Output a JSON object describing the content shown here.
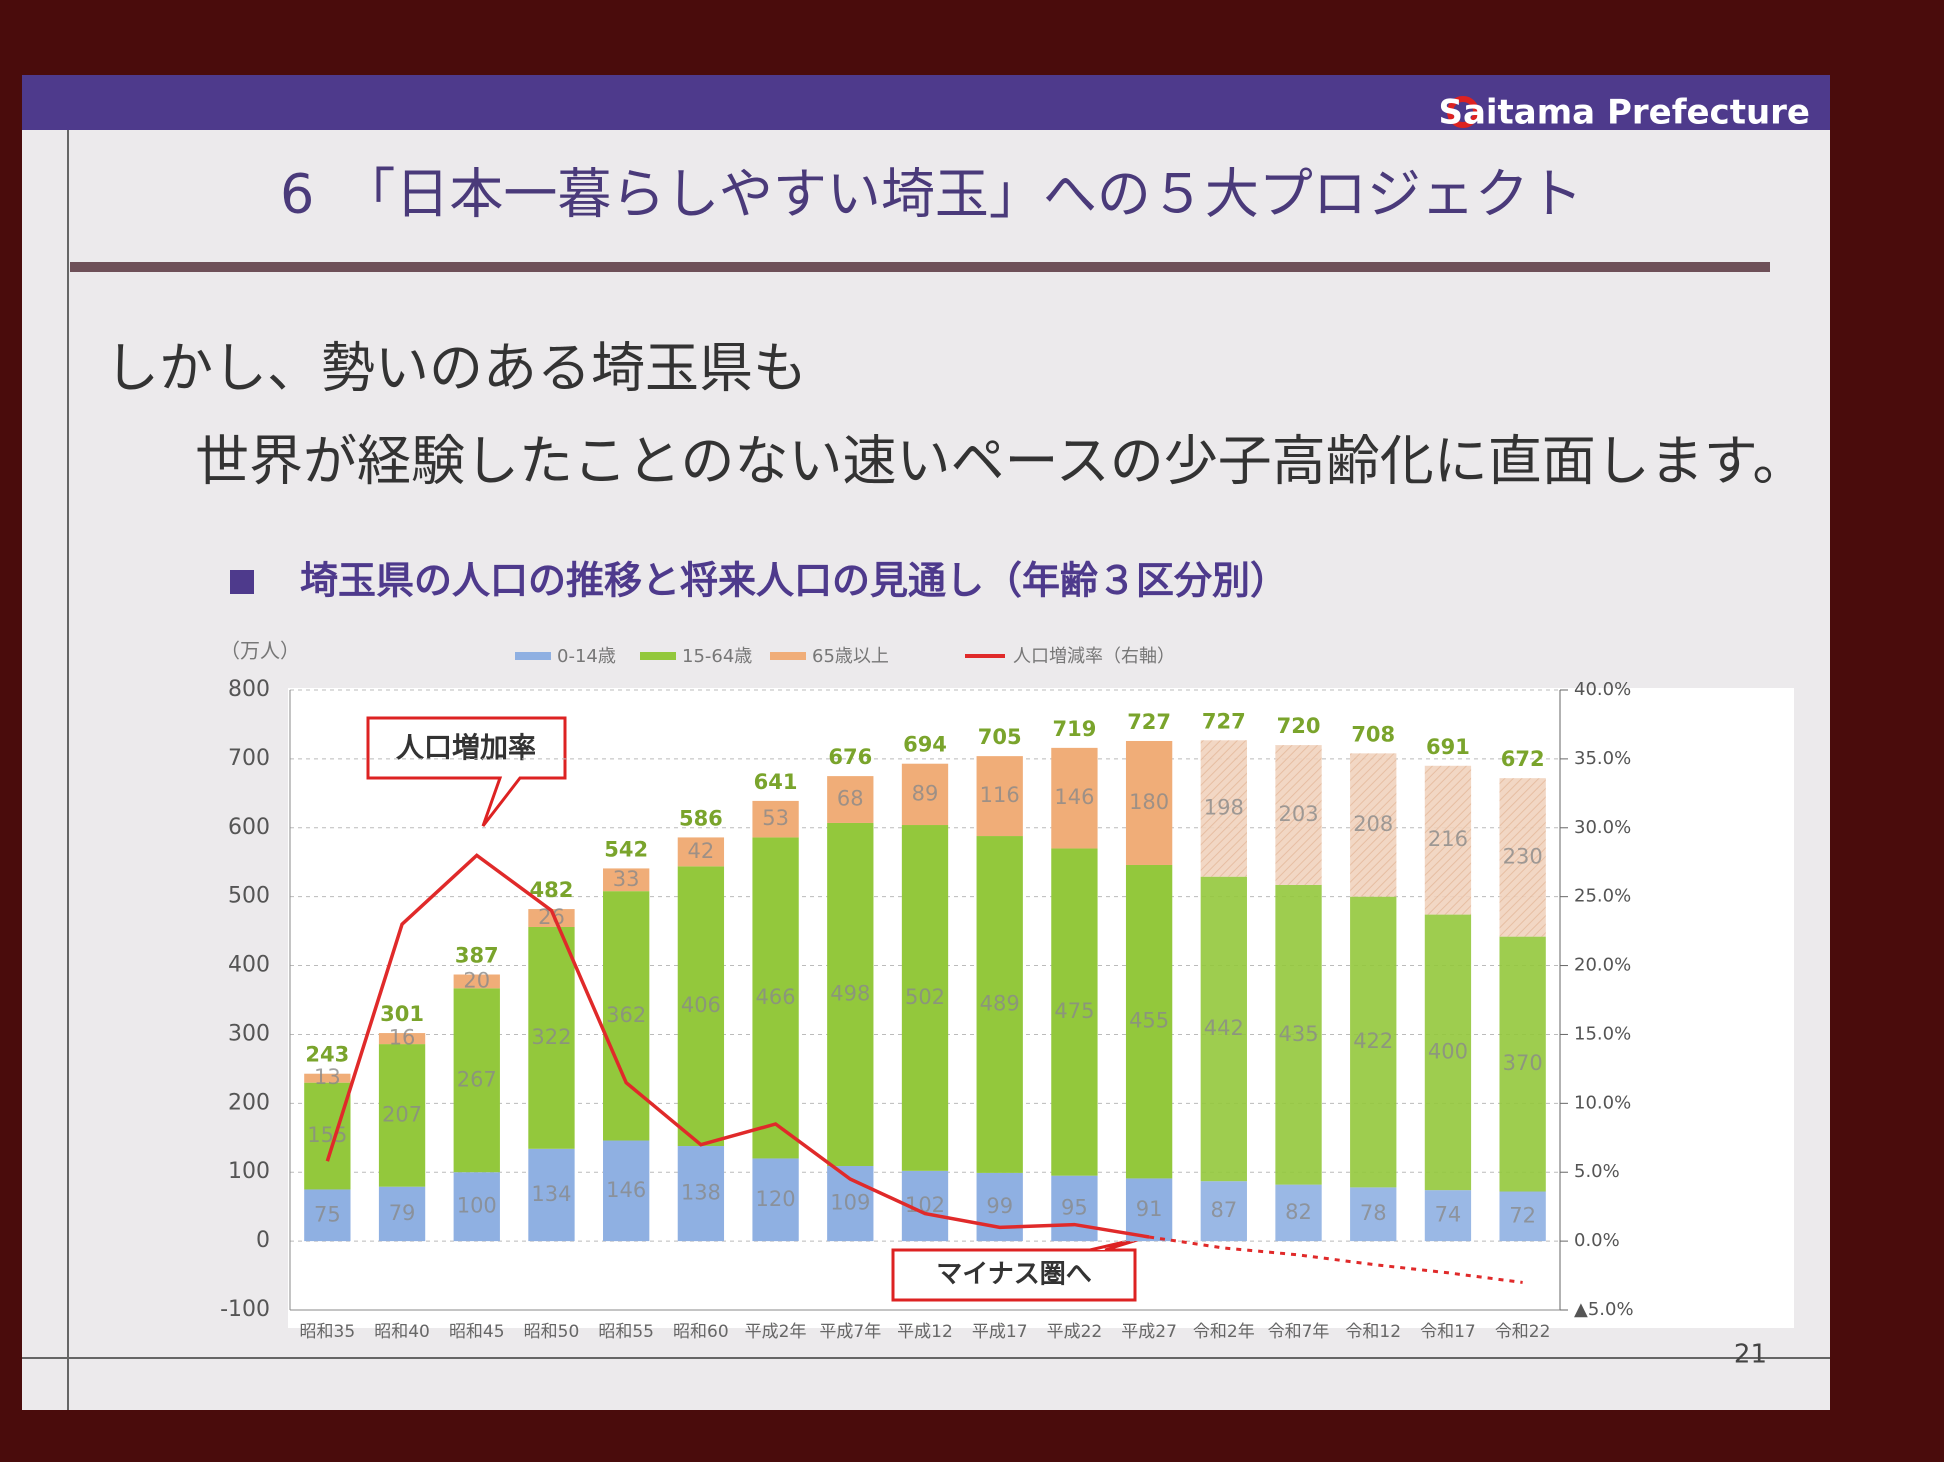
{
  "slide": {
    "header": "Saitama Prefecture",
    "title": "6　「日本一暮らしやすい埼玉」への５大プロジェクト",
    "body": [
      "しかし、勢いのある埼玉県も",
      "世界が経験したことのない速いペースの少子高齢化に直面します。"
    ],
    "page_number": "21"
  },
  "chart_data": {
    "type": "bar",
    "stacked": true,
    "title": "埼玉県の人口の推移と将来人口の見通し（年齢３区分別）",
    "y_label": "（万人）",
    "categories": [
      "昭和35",
      "昭和40",
      "昭和45",
      "昭和50",
      "昭和55",
      "昭和60",
      "平成2年",
      "平成7年",
      "平成12",
      "平成17",
      "平成22",
      "平成27",
      "令和2年",
      "令和7年",
      "令和12",
      "令和17",
      "令和22"
    ],
    "series": [
      {
        "name": "0-14歳",
        "color": "#8fb0e2",
        "values": [
          75,
          79,
          100,
          134,
          146,
          138,
          120,
          109,
          102,
          99,
          95,
          91,
          87,
          82,
          78,
          74,
          72
        ]
      },
      {
        "name": "15-64歳",
        "color": "#93c83c",
        "values": [
          155,
          207,
          267,
          322,
          362,
          406,
          466,
          498,
          502,
          489,
          475,
          455,
          442,
          435,
          422,
          400,
          370
        ]
      },
      {
        "name": "65歳以上",
        "color": "#f0ad78",
        "values": [
          13,
          16,
          20,
          26,
          33,
          42,
          53,
          68,
          89,
          116,
          146,
          180,
          198,
          203,
          208,
          216,
          230
        ]
      },
      {
        "name": "人口増減率（右軸）",
        "color": "#e02a2a",
        "type": "line",
        "axis": "y2",
        "values": [
          5.8,
          23,
          28,
          24,
          11.5,
          7,
          8.5,
          4.5,
          2,
          1,
          1.2,
          0.3,
          -0.5,
          -1,
          -1.7,
          -2.3,
          -3
        ]
      }
    ],
    "totals": [
      243,
      301,
      387,
      482,
      542,
      586,
      641,
      676,
      694,
      705,
      719,
      727,
      727,
      720,
      708,
      691,
      672
    ],
    "projection_from_index": 11,
    "ylim": [
      -100,
      800
    ],
    "yticks": [
      -100,
      0,
      100,
      200,
      300,
      400,
      500,
      600,
      700,
      800
    ],
    "y2lim": [
      -5,
      40
    ],
    "y2ticks": [
      {
        "value": -5,
        "label": "▲5.0%"
      },
      {
        "value": 0,
        "label": "0.0%"
      },
      {
        "value": 5,
        "label": "5.0%"
      },
      {
        "value": 10,
        "label": "10.0%"
      },
      {
        "value": 15,
        "label": "15.0%"
      },
      {
        "value": 20,
        "label": "20.0%"
      },
      {
        "value": 25,
        "label": "25.0%"
      },
      {
        "value": 30,
        "label": "30.0%"
      },
      {
        "value": 35,
        "label": "35.0%"
      },
      {
        "value": 40,
        "label": "40.0%"
      }
    ],
    "grid": true,
    "legend_position": "top",
    "annotations": [
      "人口増加率",
      "マイナス圏へ"
    ]
  }
}
